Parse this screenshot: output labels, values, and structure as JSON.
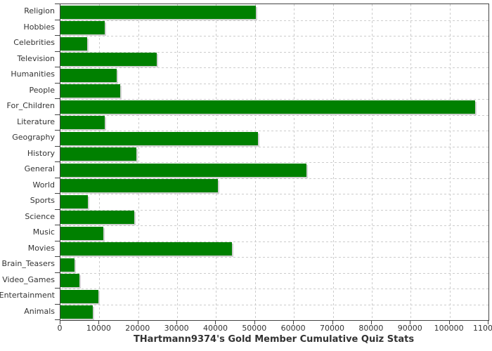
{
  "chart_data": {
    "type": "bar",
    "orientation": "horizontal",
    "title": "THartmann9374's Gold Member Cumulative Quiz Stats",
    "categories": [
      "Religion",
      "Hobbies",
      "Celebrities",
      "Television",
      "Humanities",
      "People",
      "For_Children",
      "Literature",
      "Geography",
      "History",
      "General",
      "World",
      "Sports",
      "Science",
      "Music",
      "Movies",
      "Brain_Teasers",
      "Video_Games",
      "Entertainment",
      "Animals"
    ],
    "values": [
      50200,
      11300,
      6800,
      24700,
      14400,
      15300,
      106600,
      11300,
      50800,
      19500,
      63200,
      40400,
      7000,
      18900,
      11000,
      44100,
      3700,
      4800,
      9700,
      8300
    ],
    "xlabel": "",
    "ylabel": "",
    "xlim": [
      0,
      110000
    ],
    "x_ticks": [
      0,
      10000,
      20000,
      30000,
      40000,
      50000,
      60000,
      70000,
      80000,
      90000,
      100000,
      110000
    ],
    "x_tick_labels": [
      "0",
      "10000",
      "20000",
      "30000",
      "40000",
      "50000",
      "60000",
      "70000",
      "80000",
      "90000",
      "100000",
      "110000"
    ],
    "grid": true,
    "grid_style": "dashed",
    "legend": false,
    "title_position": "bottom",
    "colors": {
      "bar": "#008000",
      "bar_shadow": "#d3d3d3",
      "gridline": "#cccccc",
      "axis": "#444444",
      "text": "#333333",
      "background": "#ffffff"
    }
  }
}
